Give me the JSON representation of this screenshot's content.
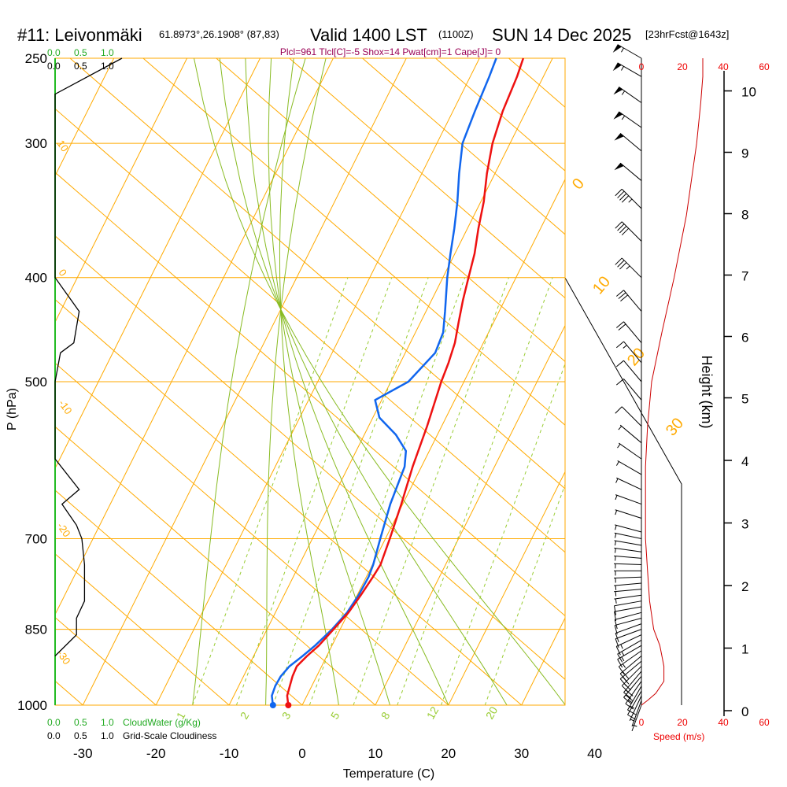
{
  "header": {
    "station": "#11: Leivonmäki",
    "coords": "61.8973°,26.1908° (87,83)",
    "valid": "Valid 1400 LST",
    "utc": "(1100Z)",
    "date": "SUN 14 Dec 2025",
    "forecast": "[23hrFcst@1643z]",
    "params": "Plcl=961 Tlcl[C]=-5 Shox=14 Pwat[cm]=1 Cape[J]= 0"
  },
  "colors": {
    "temperature": "#ee1111",
    "dewpoint": "#1166ee",
    "isotherm_isobar": "#ffaa00",
    "mixing_ratio": "#99cc33",
    "moist_adiabat": "#88bb22",
    "cloud_water": "#22bb22",
    "cloudiness": "#000000",
    "wind_speed": "#cc0000"
  },
  "labels": {
    "top_green": [
      "0.0",
      "0.5",
      "1.0"
    ],
    "top_black": [
      "0.0",
      "0.5",
      "1.0"
    ],
    "bottom_green": [
      "0.0",
      "0.5",
      "1.0"
    ],
    "bottom_black": [
      "0.0",
      "0.5",
      "1.0"
    ],
    "cloud_water_label": "CloudWater (g/Kg)",
    "cloudiness_label": "Grid-Scale Cloudiness",
    "speed_label": "Speed (m/s)",
    "height_label": "Height (km)",
    "pressure_label": "P (hPa)",
    "temperature_label": "Temperature (C)"
  },
  "chart_data": {
    "type": "line",
    "title": "#11: Leivonmäki",
    "xlabel": "Temperature (C)",
    "ylabel": "P (hPa)",
    "x_ticks": [
      -30,
      -20,
      -10,
      0,
      10,
      20,
      30,
      40
    ],
    "xlim": [
      -34,
      46
    ],
    "pressure_ticks": [
      250,
      300,
      400,
      500,
      700,
      850,
      1000
    ],
    "ylim": [
      1000,
      250
    ],
    "log_pressure": true,
    "height_ticks_km": [
      0,
      1,
      2,
      3,
      4,
      5,
      6,
      7,
      8,
      9,
      10
    ],
    "speed_ticks": [
      0,
      20,
      40,
      60
    ],
    "cloud_ticks": [
      "0.0",
      "0.5",
      "1.0"
    ],
    "isotherm_labels": [
      "0",
      "10",
      "20",
      "30"
    ],
    "dry_adiabat_labels": [
      "10",
      "0",
      "-10",
      "-20",
      "-30"
    ],
    "mixing_ratio_labels": [
      "1",
      "2",
      "3",
      "5",
      "8",
      "12",
      "20"
    ],
    "series": [
      {
        "name": "Temperature",
        "points": [
          [
            1000,
            -1.9
          ],
          [
            980,
            -2.7
          ],
          [
            960,
            -3.0
          ],
          [
            940,
            -3.3
          ],
          [
            920,
            -3.4
          ],
          [
            900,
            -2.7
          ],
          [
            880,
            -1.8
          ],
          [
            850,
            -0.9
          ],
          [
            820,
            0.0
          ],
          [
            790,
            0.5
          ],
          [
            760,
            0.9
          ],
          [
            740,
            1.1
          ],
          [
            700,
            0.6
          ],
          [
            650,
            -0.2
          ],
          [
            600,
            -1.2
          ],
          [
            550,
            -2.0
          ],
          [
            500,
            -3.1
          ],
          [
            480,
            -3.4
          ],
          [
            460,
            -3.9
          ],
          [
            440,
            -4.8
          ],
          [
            420,
            -5.7
          ],
          [
            400,
            -6.5
          ],
          [
            380,
            -7.3
          ],
          [
            360,
            -8.5
          ],
          [
            340,
            -9.6
          ],
          [
            320,
            -11.1
          ],
          [
            300,
            -12.4
          ],
          [
            280,
            -13.2
          ],
          [
            260,
            -13.6
          ],
          [
            250,
            -14.0
          ]
        ]
      },
      {
        "name": "Dewpoint",
        "points": [
          [
            1000,
            -4.0
          ],
          [
            980,
            -4.8
          ],
          [
            960,
            -5.0
          ],
          [
            940,
            -4.9
          ],
          [
            920,
            -4.4
          ],
          [
            900,
            -3.3
          ],
          [
            880,
            -2.3
          ],
          [
            850,
            -1.1
          ],
          [
            820,
            -0.2
          ],
          [
            790,
            0.2
          ],
          [
            760,
            0.3
          ],
          [
            740,
            0.1
          ],
          [
            700,
            -0.7
          ],
          [
            650,
            -1.7
          ],
          [
            600,
            -2.3
          ],
          [
            580,
            -3.2
          ],
          [
            560,
            -5.7
          ],
          [
            540,
            -9.1
          ],
          [
            520,
            -10.9
          ],
          [
            500,
            -7.6
          ],
          [
            470,
            -5.9
          ],
          [
            450,
            -6.2
          ],
          [
            430,
            -7.4
          ],
          [
            400,
            -9.4
          ],
          [
            380,
            -10.6
          ],
          [
            360,
            -11.8
          ],
          [
            340,
            -13.2
          ],
          [
            320,
            -14.9
          ],
          [
            300,
            -16.5
          ],
          [
            280,
            -17.0
          ],
          [
            260,
            -17.4
          ],
          [
            250,
            -17.7
          ]
        ]
      },
      {
        "name": "Wind Speed",
        "points": [
          [
            1000,
            0
          ],
          [
            990,
            3
          ],
          [
            975,
            7
          ],
          [
            950,
            11
          ],
          [
            920,
            11
          ],
          [
            880,
            9
          ],
          [
            850,
            6
          ],
          [
            800,
            4
          ],
          [
            750,
            3
          ],
          [
            700,
            2
          ],
          [
            650,
            2
          ],
          [
            600,
            2
          ],
          [
            550,
            3
          ],
          [
            500,
            5
          ],
          [
            450,
            10
          ],
          [
            400,
            16
          ],
          [
            350,
            22
          ],
          [
            300,
            27
          ],
          [
            275,
            29
          ],
          [
            260,
            30
          ],
          [
            250,
            30
          ]
        ]
      },
      {
        "name": "CloudWater (g/Kg)",
        "points": [
          [
            250,
            1.25
          ],
          [
            270,
            0.0
          ],
          [
            400,
            0.0
          ],
          [
            430,
            0.45
          ],
          [
            460,
            0.35
          ],
          [
            470,
            0.1
          ],
          [
            500,
            0.0
          ],
          [
            590,
            0.0
          ],
          [
            630,
            0.45
          ],
          [
            650,
            0.13
          ],
          [
            680,
            0.4
          ],
          [
            700,
            0.5
          ],
          [
            740,
            0.55
          ],
          [
            800,
            0.55
          ],
          [
            830,
            0.4
          ],
          [
            860,
            0.4
          ],
          [
            900,
            0.0
          ]
        ]
      }
    ],
    "wind_barbs": [
      {
        "p": 1000,
        "speed_kt": 2,
        "dir": 200
      },
      {
        "p": 990,
        "speed_kt": 6,
        "dir": 200
      },
      {
        "p": 980,
        "speed_kt": 9,
        "dir": 205
      },
      {
        "p": 970,
        "speed_kt": 12,
        "dir": 210
      },
      {
        "p": 960,
        "speed_kt": 15,
        "dir": 210
      },
      {
        "p": 950,
        "speed_kt": 18,
        "dir": 215
      },
      {
        "p": 940,
        "speed_kt": 20,
        "dir": 220
      },
      {
        "p": 930,
        "speed_kt": 20,
        "dir": 220
      },
      {
        "p": 920,
        "speed_kt": 20,
        "dir": 225
      },
      {
        "p": 910,
        "speed_kt": 20,
        "dir": 230
      },
      {
        "p": 900,
        "speed_kt": 20,
        "dir": 230
      },
      {
        "p": 890,
        "speed_kt": 18,
        "dir": 235
      },
      {
        "p": 880,
        "speed_kt": 18,
        "dir": 240
      },
      {
        "p": 870,
        "speed_kt": 16,
        "dir": 240
      },
      {
        "p": 860,
        "speed_kt": 15,
        "dir": 245
      },
      {
        "p": 850,
        "speed_kt": 14,
        "dir": 250
      },
      {
        "p": 840,
        "speed_kt": 12,
        "dir": 250
      },
      {
        "p": 830,
        "speed_kt": 12,
        "dir": 255
      },
      {
        "p": 820,
        "speed_kt": 10,
        "dir": 255
      },
      {
        "p": 810,
        "speed_kt": 10,
        "dir": 260
      },
      {
        "p": 800,
        "speed_kt": 10,
        "dir": 260
      },
      {
        "p": 790,
        "speed_kt": 9,
        "dir": 262
      },
      {
        "p": 780,
        "speed_kt": 8,
        "dir": 265
      },
      {
        "p": 770,
        "speed_kt": 8,
        "dir": 265
      },
      {
        "p": 760,
        "speed_kt": 7,
        "dir": 268
      },
      {
        "p": 750,
        "speed_kt": 7,
        "dir": 270
      },
      {
        "p": 740,
        "speed_kt": 6,
        "dir": 272
      },
      {
        "p": 730,
        "speed_kt": 6,
        "dir": 275
      },
      {
        "p": 720,
        "speed_kt": 6,
        "dir": 278
      },
      {
        "p": 710,
        "speed_kt": 5,
        "dir": 280
      },
      {
        "p": 700,
        "speed_kt": 5,
        "dir": 282
      },
      {
        "p": 690,
        "speed_kt": 5,
        "dir": 285
      },
      {
        "p": 670,
        "speed_kt": 5,
        "dir": 288
      },
      {
        "p": 650,
        "speed_kt": 5,
        "dir": 290
      },
      {
        "p": 630,
        "speed_kt": 5,
        "dir": 295
      },
      {
        "p": 610,
        "speed_kt": 5,
        "dir": 300
      },
      {
        "p": 590,
        "speed_kt": 6,
        "dir": 305
      },
      {
        "p": 570,
        "speed_kt": 8,
        "dir": 310
      },
      {
        "p": 550,
        "speed_kt": 10,
        "dir": 315
      },
      {
        "p": 520,
        "speed_kt": 10,
        "dir": 320
      },
      {
        "p": 500,
        "speed_kt": 10,
        "dir": 320
      },
      {
        "p": 480,
        "speed_kt": 15,
        "dir": 320
      },
      {
        "p": 460,
        "speed_kt": 20,
        "dir": 320
      },
      {
        "p": 430,
        "speed_kt": 30,
        "dir": 320
      },
      {
        "p": 400,
        "speed_kt": 35,
        "dir": 315
      },
      {
        "p": 370,
        "speed_kt": 40,
        "dir": 315
      },
      {
        "p": 345,
        "speed_kt": 45,
        "dir": 315
      },
      {
        "p": 325,
        "speed_kt": 50,
        "dir": 310
      },
      {
        "p": 305,
        "speed_kt": 50,
        "dir": 310
      },
      {
        "p": 290,
        "speed_kt": 55,
        "dir": 305
      },
      {
        "p": 275,
        "speed_kt": 55,
        "dir": 305
      },
      {
        "p": 260,
        "speed_kt": 55,
        "dir": 300
      },
      {
        "p": 250,
        "speed_kt": 55,
        "dir": 300
      }
    ],
    "grid": true,
    "legend": "none"
  }
}
